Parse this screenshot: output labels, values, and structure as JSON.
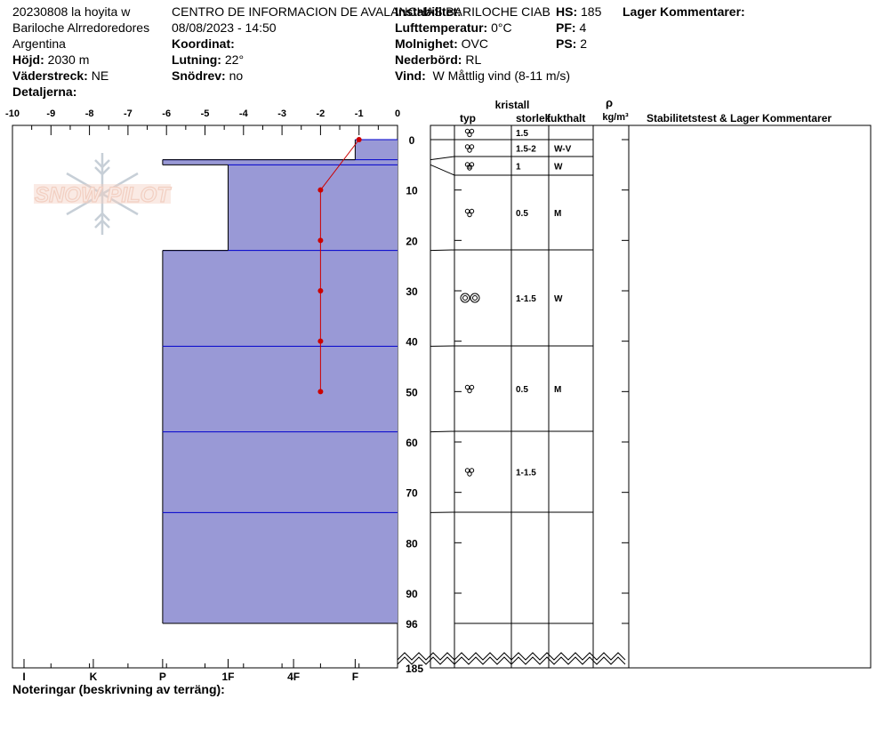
{
  "header": {
    "col1": {
      "line1": "20230808 la hoyita w",
      "line2": "Bariloche Alrredoredores",
      "line3": "Argentina",
      "hojd_label": "Höjd:",
      "hojd_value": "2030 m",
      "vaderstreck_label": "Väderstreck:",
      "vaderstreck_value": "NE",
      "detaljerna_label": "Detaljerna:"
    },
    "col2": {
      "line1": "CENTRO DE INFORMACION DE AVALANCHAS BARILOCHE CIAB",
      "line2": "08/08/2023 - 14:50",
      "koordinat_label": "Koordinat:",
      "lutning_label": "Lutning:",
      "lutning_value": "22°",
      "snodrev_label": "Snödrev:",
      "snodrev_value": "no"
    },
    "col3": {
      "instabilitet_label": "Instabilitet:",
      "lufttemp_label": "Lufttemperatur:",
      "lufttemp_value": "0°C",
      "molnighet_label": "Molnighet:",
      "molnighet_value": "OVC",
      "nederbord_label": "Nederbörd:",
      "nederbord_value": "RL",
      "vind_label": "Vind:",
      "vind_value": "W Måttlig vind (8-11 m/s)"
    },
    "col4": {
      "hs_label": "HS:",
      "hs_value": "185",
      "pf_label": "PF:",
      "pf_value": "4",
      "ps_label": "PS:",
      "ps_value": "2"
    },
    "col5": {
      "lager_label": "Lager Kommentarer:"
    }
  },
  "notes_label": "Noteringar (beskrivning av terräng):",
  "watermark_text": "SNOW PILOT",
  "columns": {
    "kristall": "kristall",
    "typ": "typ",
    "storlek": "storlek",
    "fukthalt": "fukthalt",
    "rho": "ρ",
    "density_unit": "kg/m³",
    "stability": "Stabilitetstest & Lager Kommentarer"
  },
  "colors": {
    "hardness_fill": "#9999d6",
    "hardness_line": "#0000cc",
    "temp_line": "#cc0000"
  },
  "chart_data": {
    "type": "area",
    "temperature_axis": {
      "ticks": [
        -10,
        -9,
        -8,
        -7,
        -6,
        -5,
        -4,
        -3,
        -2,
        -1,
        0
      ],
      "labels": [
        "-10",
        "-9",
        "-8",
        "-7",
        "-6",
        "-5",
        "-4",
        "-3",
        "-2",
        "-1",
        "0"
      ],
      "range": [
        -10,
        0
      ]
    },
    "hardness_axis": {
      "labels": [
        "I",
        "K",
        "P",
        "1F",
        "4F",
        "F"
      ]
    },
    "depth_axis": {
      "range": [
        0,
        96
      ],
      "ticks": [
        0,
        10,
        20,
        30,
        40,
        50,
        60,
        70,
        80,
        90,
        96
      ],
      "labels": [
        "0",
        "10",
        "20",
        "30",
        "40",
        "50",
        "60",
        "70",
        "80",
        "90",
        "96"
      ],
      "bottom_label": "185"
    },
    "layers": [
      {
        "top": 0,
        "bottom": 4,
        "hardness": -1.1,
        "grain_type": "rounded",
        "size": "1.5",
        "moisture": ""
      },
      {
        "top": 4,
        "bottom": 5,
        "hardness": -6.1,
        "grain_type": "rounded",
        "size": "1.5-2",
        "moisture": "W-V"
      },
      {
        "top": 5,
        "bottom": 22,
        "hardness": -4.4,
        "grain_type": "rounded",
        "size": "1",
        "moisture": "W"
      },
      {
        "top": 22,
        "bottom": 41,
        "hardness": -6.1,
        "grain_type": "rounded",
        "size": "0.5",
        "moisture": "M"
      },
      {
        "top": 41,
        "bottom": 58,
        "hardness": -6.1,
        "grain_type": "melt-forms",
        "size": "1-1.5",
        "moisture": "W"
      },
      {
        "top": 58,
        "bottom": 74,
        "hardness": -6.1,
        "grain_type": "rounded",
        "size": "0.5",
        "moisture": "M"
      },
      {
        "top": 74,
        "bottom": 96,
        "hardness": -6.1,
        "grain_type": "faceted-rounded",
        "size": "1-1.5",
        "moisture": ""
      }
    ],
    "crust_marker": {
      "depth": 4.5,
      "symbol": "="
    },
    "temperature_profile": [
      {
        "depth": 0,
        "temp": -1
      },
      {
        "depth": 10,
        "temp": -2
      },
      {
        "depth": 20,
        "temp": -2
      },
      {
        "depth": 30,
        "temp": -2
      },
      {
        "depth": 40,
        "temp": -2
      },
      {
        "depth": 50,
        "temp": -2
      }
    ]
  }
}
